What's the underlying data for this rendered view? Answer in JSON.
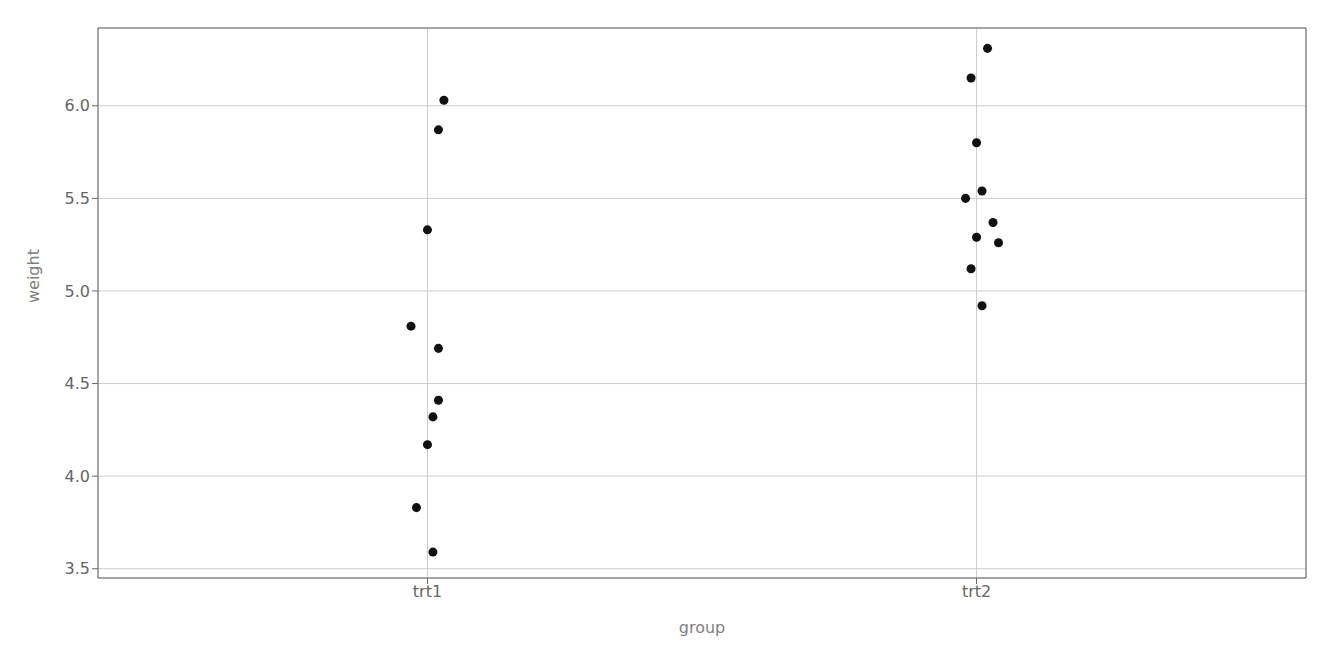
{
  "chart_data": {
    "type": "scatter",
    "xlabel": "group",
    "ylabel": "weight",
    "xlim": [
      0.4,
      2.6
    ],
    "ylim": [
      3.45,
      6.42
    ],
    "xticks": [
      {
        "value": 1,
        "label": "trt1"
      },
      {
        "value": 2,
        "label": "trt2"
      }
    ],
    "yticks": [
      3.5,
      {
        "value": 4.0,
        "label": "4.0"
      },
      4.5,
      {
        "value": 5.0,
        "label": "5.0"
      },
      5.5,
      {
        "value": 6.0,
        "label": "6.0"
      }
    ],
    "grid": true,
    "series": [
      {
        "x": [
          0.97,
          1.0,
          1.02,
          1.01,
          1.02,
          0.98,
          1.03,
          1.01,
          1.02,
          1.0
        ],
        "values": [
          4.81,
          4.17,
          4.41,
          3.59,
          5.87,
          3.83,
          6.03,
          4.32,
          4.69,
          5.33
        ],
        "color": "#111111"
      },
      {
        "x": [
          2.02,
          1.99,
          2.01,
          1.98,
          2.03,
          2.0,
          2.01,
          1.99,
          2.0,
          2.04
        ],
        "values": [
          6.31,
          5.12,
          5.54,
          5.5,
          5.37,
          5.29,
          4.92,
          6.15,
          5.8,
          5.26
        ],
        "color": "#111111"
      }
    ]
  }
}
